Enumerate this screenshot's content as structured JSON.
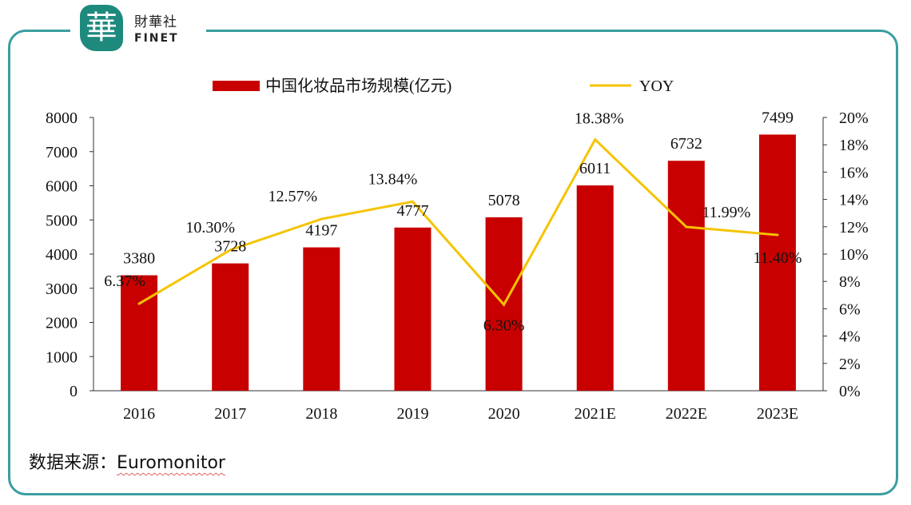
{
  "logo": {
    "text_cn": "財華社",
    "text_en": "FINET",
    "mark": "華"
  },
  "source": {
    "label": "数据来源：",
    "value": "Euromonitor"
  },
  "colors": {
    "bar": "#c80000",
    "line": "#f5c400",
    "frame": "#3a9ea0"
  },
  "chart_data": {
    "type": "bar+line",
    "categories": [
      "2016",
      "2017",
      "2018",
      "2019",
      "2020",
      "2021E",
      "2022E",
      "2023E"
    ],
    "series": [
      {
        "name": "中国化妆品市场规模(亿元)",
        "type": "bar",
        "axis": "left",
        "values": [
          3380,
          3728,
          4197,
          4777,
          5078,
          6011,
          6732,
          7499
        ],
        "labels": [
          "3380",
          "3728",
          "4197",
          "4777",
          "5078",
          "6011",
          "6732",
          "7499"
        ]
      },
      {
        "name": "YOY",
        "type": "line",
        "axis": "right",
        "values": [
          6.37,
          10.3,
          12.57,
          13.84,
          6.3,
          18.38,
          11.99,
          11.4
        ],
        "labels": [
          "6.37%",
          "10.30%",
          "12.57%",
          "13.84%",
          "6.30%",
          "18.38%",
          "11.99%",
          "11.40%"
        ]
      }
    ],
    "left_axis": {
      "ylim": [
        0,
        8000
      ],
      "ticks": [
        "0",
        "1000",
        "2000",
        "3000",
        "4000",
        "5000",
        "6000",
        "7000",
        "8000"
      ]
    },
    "right_axis": {
      "ylim": [
        0,
        20
      ],
      "ticks": [
        "0%",
        "2%",
        "4%",
        "6%",
        "8%",
        "10%",
        "12%",
        "14%",
        "16%",
        "18%",
        "20%"
      ]
    },
    "legend": "top",
    "grid": false
  }
}
